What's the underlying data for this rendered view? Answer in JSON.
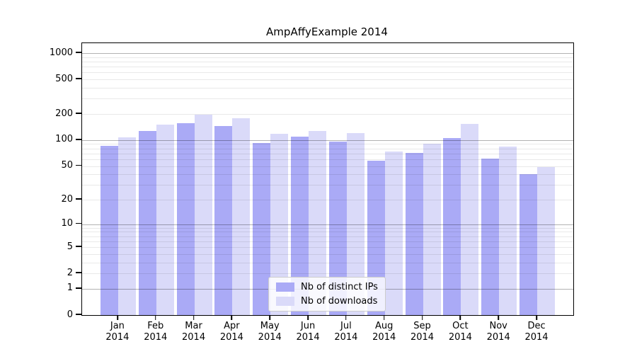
{
  "chart_data": {
    "type": "bar",
    "title": "AmpAffyExample 2014",
    "xlabel": "",
    "ylabel": "",
    "year_label": "2014",
    "categories": [
      "Jan",
      "Feb",
      "Mar",
      "Apr",
      "May",
      "Jun",
      "Jul",
      "Aug",
      "Sep",
      "Oct",
      "Nov",
      "Dec"
    ],
    "series": [
      {
        "name": "Nb of distinct IPs",
        "color": "#aaaaf6",
        "values": [
          86,
          128,
          157,
          146,
          93,
          110,
          97,
          58,
          71,
          105,
          61,
          40
        ]
      },
      {
        "name": "Nb of downloads",
        "color": "#dadaf9",
        "values": [
          107,
          150,
          197,
          179,
          119,
          127,
          121,
          74,
          90,
          155,
          84,
          49
        ]
      }
    ],
    "y_axis": {
      "scale": "log1p",
      "max": 1300,
      "ticks": [
        1000,
        500,
        200,
        100,
        50,
        20,
        10,
        5,
        2,
        1,
        0
      ],
      "major_gridlines": [
        1,
        10,
        100,
        1000
      ],
      "minor_gridlines": [
        2,
        3,
        4,
        5,
        6,
        7,
        8,
        9,
        20,
        30,
        40,
        50,
        60,
        70,
        80,
        90,
        200,
        300,
        400,
        500,
        600,
        700,
        800,
        900
      ]
    },
    "legend_position": "bottom-center",
    "grid": true
  },
  "colors": {
    "background": "#ffffff",
    "axis": "#000000",
    "bar_dark": "#aaaaf6",
    "bar_light": "#dadaf9"
  }
}
